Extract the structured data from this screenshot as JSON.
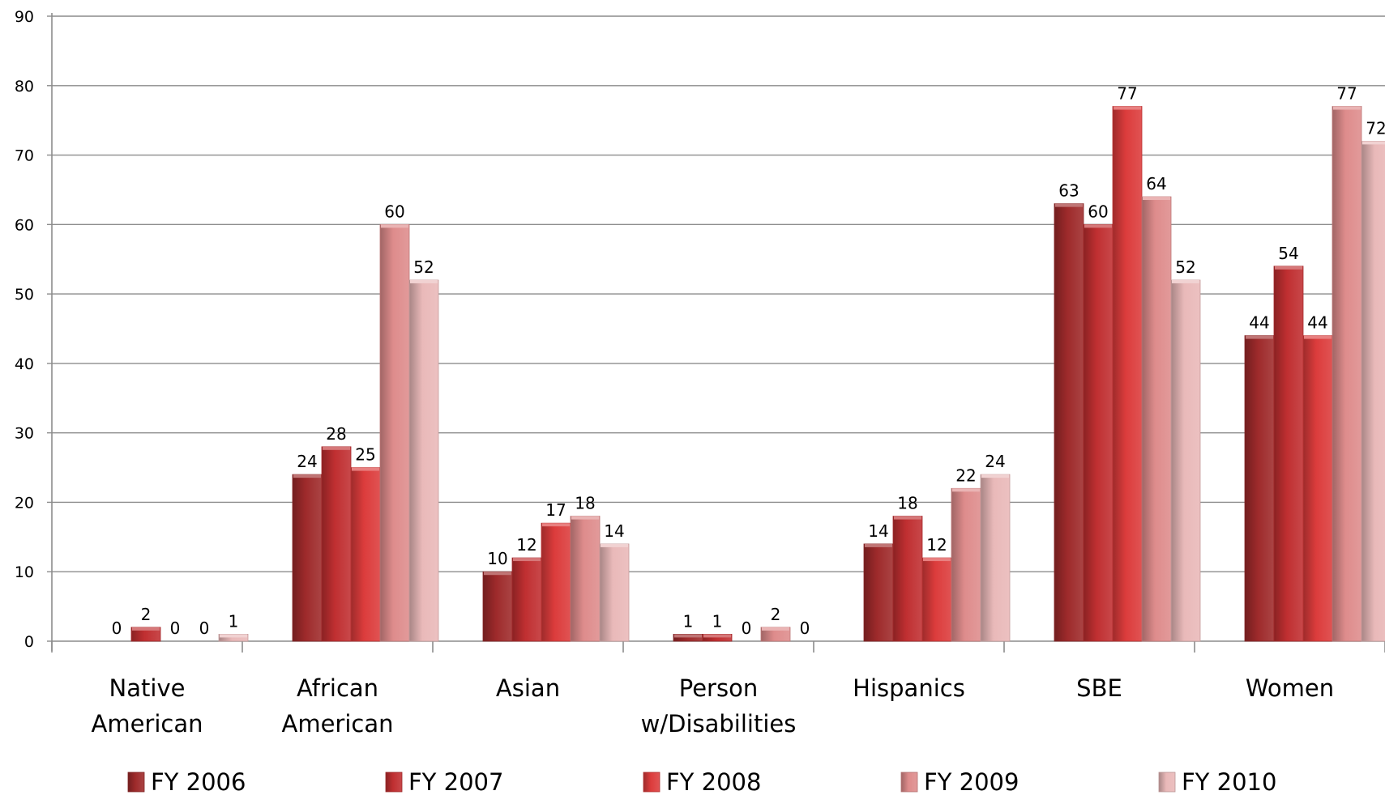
{
  "chart_data": {
    "type": "bar",
    "title": "",
    "xlabel": "",
    "ylabel": "",
    "ylim": [
      0,
      90
    ],
    "yticks": [
      0,
      10,
      20,
      30,
      40,
      50,
      60,
      70,
      80,
      90
    ],
    "grid": true,
    "legend_position": "bottom",
    "categories": [
      [
        "Native",
        "American"
      ],
      [
        "African",
        "American"
      ],
      [
        "Asian"
      ],
      [
        "Person",
        "w/Disabilities"
      ],
      [
        "Hispanics"
      ],
      [
        "SBE"
      ],
      [
        "Women"
      ]
    ],
    "series": [
      {
        "name": "FY 2006",
        "color": "#9e2a2b",
        "values": [
          0,
          24,
          10,
          1,
          14,
          63,
          44
        ]
      },
      {
        "name": "FY 2007",
        "color": "#c02f31",
        "values": [
          2,
          28,
          12,
          1,
          18,
          60,
          54
        ]
      },
      {
        "name": "FY 2008",
        "color": "#dc3c3c",
        "values": [
          0,
          25,
          17,
          0,
          12,
          77,
          44
        ]
      },
      {
        "name": "FY 2009",
        "color": "#de8c8c",
        "values": [
          0,
          60,
          18,
          2,
          22,
          64,
          77
        ]
      },
      {
        "name": "FY 2010",
        "color": "#e9b9b9",
        "values": [
          1,
          52,
          14,
          0,
          24,
          52,
          72
        ]
      }
    ]
  }
}
